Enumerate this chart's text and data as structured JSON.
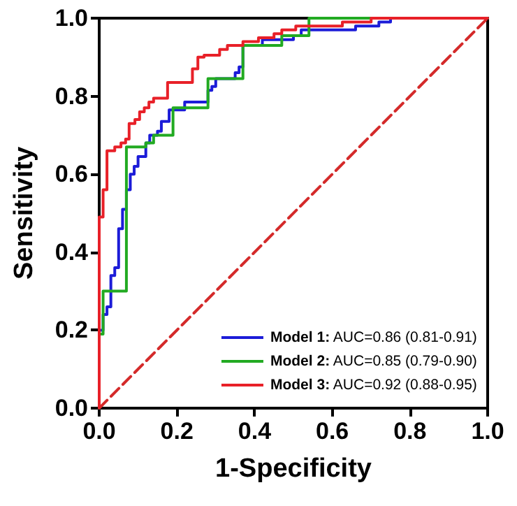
{
  "chart_data": {
    "type": "step",
    "xlabel": "1-Specificity",
    "ylabel": "Sensitivity",
    "xlim": [
      0,
      1
    ],
    "ylim": [
      0,
      1
    ],
    "xticks": [
      {
        "value": 0,
        "label": "0.0"
      },
      {
        "value": 0.2,
        "label": "0.2"
      },
      {
        "value": 0.4,
        "label": "0.4"
      },
      {
        "value": 0.6,
        "label": "0.6"
      },
      {
        "value": 0.8,
        "label": "0.8"
      },
      {
        "value": 1,
        "label": "1.0"
      }
    ],
    "yticks": [
      {
        "value": 0,
        "label": "0.0"
      },
      {
        "value": 0.2,
        "label": "0.2"
      },
      {
        "value": 0.4,
        "label": "0.4"
      },
      {
        "value": 0.6,
        "label": "0.6"
      },
      {
        "value": 0.8,
        "label": "0.8"
      },
      {
        "value": 1,
        "label": "1.0"
      }
    ],
    "grid": false,
    "legend": "bottom right",
    "marker": "none",
    "series": [
      {
        "name": "Model 1: AUC=0.86 (0.81-0.91)",
        "color": "#1c1cd8",
        "x": [
          0,
          0,
          0.01,
          0.02,
          0.03,
          0.04,
          0.05,
          0.06,
          0.07,
          0.08,
          0.09,
          0.1,
          0.12,
          0.13,
          0.15,
          0.16,
          0.18,
          0.22,
          0.28,
          0.29,
          0.3,
          0.35,
          0.36,
          0.37,
          0.42,
          0.5,
          0.52,
          0.66,
          0.72,
          0.75,
          1
        ],
        "values": [
          0,
          0.2,
          0.24,
          0.26,
          0.34,
          0.36,
          0.46,
          0.51,
          0.56,
          0.6,
          0.62,
          0.645,
          0.68,
          0.7,
          0.71,
          0.735,
          0.765,
          0.785,
          0.815,
          0.825,
          0.845,
          0.86,
          0.875,
          0.93,
          0.945,
          0.955,
          0.97,
          0.98,
          0.99,
          1,
          1
        ]
      },
      {
        "name": "Model 2: AUC=0.85 (0.79-0.90)",
        "color": "#22aa22",
        "x": [
          0,
          0,
          0.01,
          0.07,
          0.12,
          0.14,
          0.19,
          0.28,
          0.37,
          0.47,
          0.54,
          1
        ],
        "values": [
          0,
          0.19,
          0.3,
          0.67,
          0.68,
          0.7,
          0.77,
          0.845,
          0.93,
          0.955,
          1,
          1
        ]
      },
      {
        "name": "Model 3: AUC=0.92 (0.88-0.95)",
        "color": "#e82028",
        "x": [
          0,
          0,
          0.01,
          0.02,
          0.04,
          0.056,
          0.068,
          0.077,
          0.092,
          0.104,
          0.116,
          0.128,
          0.14,
          0.176,
          0.24,
          0.254,
          0.27,
          0.31,
          0.33,
          0.37,
          0.41,
          0.45,
          0.47,
          0.506,
          0.626,
          0.7,
          1
        ],
        "values": [
          0,
          0.49,
          0.56,
          0.66,
          0.67,
          0.68,
          0.69,
          0.73,
          0.74,
          0.76,
          0.77,
          0.785,
          0.795,
          0.835,
          0.87,
          0.9,
          0.905,
          0.92,
          0.93,
          0.94,
          0.95,
          0.96,
          0.97,
          0.98,
          0.99,
          1,
          1
        ]
      },
      {
        "type": "line",
        "color": "#d42a2a",
        "line_style": "dashed",
        "x": [
          0,
          1
        ],
        "values": [
          0,
          1
        ]
      }
    ]
  }
}
